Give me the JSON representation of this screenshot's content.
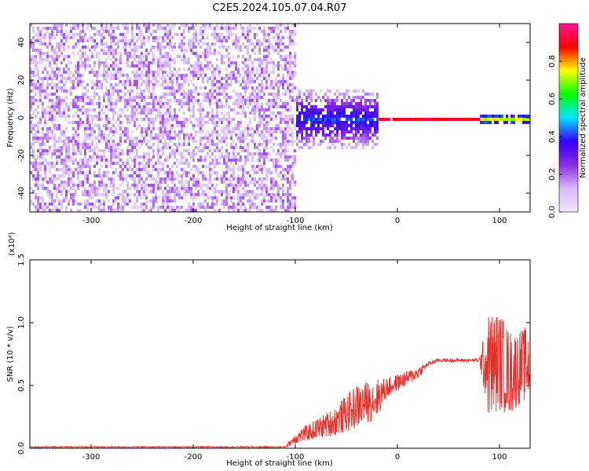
{
  "title": "C2E5.2024.105.07.04.R07",
  "colors": {
    "snr_line": "#e8312b",
    "colormap": [
      "#f2e6ff",
      "#d9b8ff",
      "#8a2be2",
      "#3300ff",
      "#00e5ff",
      "#00ff00",
      "#ffff00",
      "#ff0000",
      "#ff1493"
    ]
  },
  "chart_data": [
    {
      "type": "heatmap",
      "xlabel": "Height of straight line (km)",
      "ylabel": "Frequency (Hz)",
      "xlim": [
        -360,
        130
      ],
      "ylim": [
        -50,
        50
      ],
      "xticks": [
        -300,
        -200,
        -100,
        0,
        100
      ],
      "yticks": [
        -40,
        -20,
        0,
        20,
        40
      ],
      "colorbar": {
        "label": "Normalized spectral amplitude",
        "range": [
          0.0,
          1.0
        ],
        "ticks": [
          "0.0",
          "0.2",
          "0.4",
          "0.6",
          "0.8"
        ],
        "tick_values": [
          0.0,
          0.2,
          0.4,
          0.6,
          0.8
        ]
      },
      "regions": [
        {
          "x": [
            -360,
            -100
          ],
          "freq_spread": 50,
          "amplitude": [
            0.05,
            0.22
          ],
          "pattern": "scattered noise"
        },
        {
          "x": [
            -100,
            -20
          ],
          "freq_spread": 15,
          "amplitude": [
            0.15,
            0.45
          ],
          "pattern": "narrowing"
        },
        {
          "x": [
            -20,
            80
          ],
          "freq_spread": 1.5,
          "amplitude": [
            0.5,
            0.95
          ],
          "pattern": "narrow band near 0 Hz"
        },
        {
          "x": [
            80,
            130
          ],
          "freq_spread": 3,
          "amplitude": [
            0.2,
            0.75
          ],
          "pattern": "narrow band near 0 Hz"
        }
      ]
    },
    {
      "type": "line",
      "xlabel": "Height of straight line (km)",
      "ylabel": "SNR (10 * v/v)",
      "y_multiplier": "(x10⁴)",
      "xlim": [
        -360,
        130
      ],
      "ylim": [
        0,
        15000
      ],
      "xticks": [
        -300,
        -200,
        -100,
        0,
        100
      ],
      "yticks": [
        0,
        5000,
        10000,
        15000
      ],
      "ytick_labels": [
        "0.0",
        "0.5",
        "1.0",
        "1.5"
      ],
      "series": [
        {
          "x": [
            -360,
            -110,
            -100,
            -80,
            -60,
            -40,
            -20,
            -10,
            0,
            20,
            30,
            40,
            60,
            80,
            90,
            100,
            110,
            120,
            130
          ],
          "y": [
            100,
            100,
            800,
            1500,
            2200,
            3300,
            4000,
            4800,
            5200,
            6000,
            6700,
            7000,
            7000,
            7000,
            6500,
            7000,
            6000,
            6500,
            6800
          ],
          "noise": [
            50,
            50,
            500,
            800,
            1200,
            1800,
            1600,
            800,
            700,
            500,
            200,
            150,
            150,
            150,
            4500,
            4000,
            3500,
            3000,
            3000
          ]
        }
      ]
    }
  ]
}
